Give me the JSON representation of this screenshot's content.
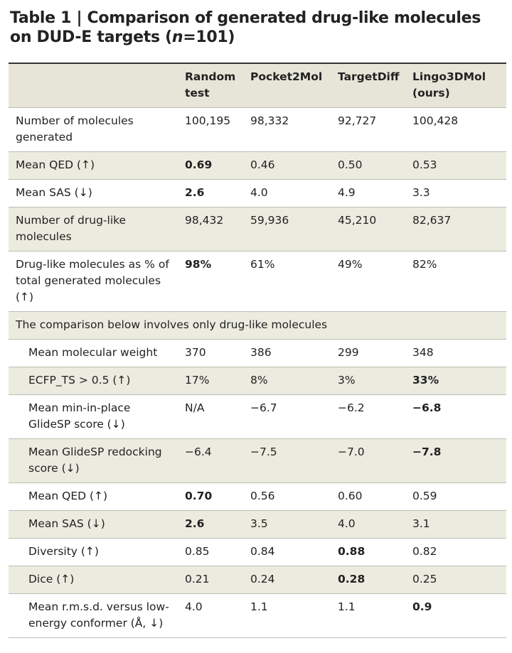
{
  "title": {
    "prefix": "Table 1 | Comparison of generated drug-like molecules on DUD-E targets (",
    "n": "n",
    "suffix": "=101)"
  },
  "table": {
    "header": [
      "Random test",
      "Pocket2Mol",
      "TargetDiff",
      "Lingo3DMol (ours)"
    ],
    "rows_top": [
      [
        "Number of molecules generated",
        "100,195",
        "98,332",
        "92,727",
        "100,428"
      ],
      [
        "Mean QED (↑)",
        "0.69",
        "0.46",
        "0.50",
        "0.53"
      ],
      [
        "Mean SAS (↓)",
        "2.6",
        "4.0",
        "4.9",
        "3.3"
      ],
      [
        "Number of drug-like molecules",
        "98,432",
        "59,936",
        "45,210",
        "82,637"
      ],
      [
        "Drug-like molecules as % of total generated molecules (↑)",
        "98%",
        "61%",
        "49%",
        "82%"
      ]
    ],
    "section": "The comparison below involves only drug-like molecules",
    "rows_bottom": [
      [
        "Mean molecular weight",
        "370",
        "386",
        "299",
        "348"
      ],
      [
        "ECFP_TS > 0.5 (↑)",
        "17%",
        "8%",
        "3%",
        "33%"
      ],
      [
        "Mean min-in-place GlideSP score (↓)",
        "N/A",
        "−6.7",
        "−6.2",
        "−6.8"
      ],
      [
        "Mean GlideSP redocking score (↓)",
        "−6.4",
        "−7.5",
        "−7.0",
        "−7.8"
      ],
      [
        "Mean QED (↑)",
        "0.70",
        "0.56",
        "0.60",
        "0.59"
      ],
      [
        "Mean SAS (↓)",
        "2.6",
        "3.5",
        "4.0",
        "3.1"
      ],
      [
        "Diversity (↑)",
        "0.85",
        "0.84",
        "0.88",
        "0.82"
      ],
      [
        "Dice (↑)",
        "0.21",
        "0.24",
        "0.28",
        "0.25"
      ],
      [
        "Mean r.m.s.d. versus low-energy conformer (Å, ↓)",
        "4.0",
        "1.1",
        "1.1",
        "0.9"
      ]
    ]
  }
}
